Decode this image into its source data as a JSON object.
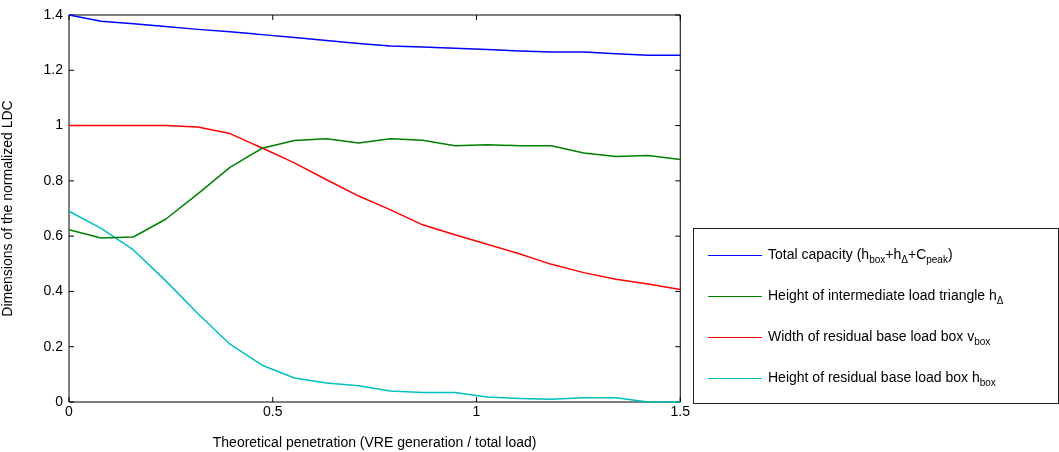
{
  "chart_data": {
    "type": "line",
    "xlabel": "Theoretical penetration (VRE generation / total load)",
    "ylabel": "Dimensions of the normalized LDC",
    "x": [
      0,
      0.079,
      0.158,
      0.237,
      0.316,
      0.395,
      0.474,
      0.553,
      0.632,
      0.711,
      0.789,
      0.868,
      0.947,
      1.026,
      1.105,
      1.184,
      1.263,
      1.342,
      1.421,
      1.5
    ],
    "series": [
      {
        "name": "Total capacity (h$_{box}$+h$_{Δ}$+C$_{peak}$)",
        "color": "#0000ff",
        "values": [
          1.4,
          1.377,
          1.368,
          1.358,
          1.348,
          1.339,
          1.329,
          1.319,
          1.308,
          1.297,
          1.288,
          1.284,
          1.28,
          1.275,
          1.27,
          1.266,
          1.266,
          1.26,
          1.254,
          1.254
        ]
      },
      {
        "name": "Height of intermediate load triangle h$_{Δ}$",
        "color": "#008000",
        "values": [
          0.623,
          0.593,
          0.597,
          0.661,
          0.753,
          0.849,
          0.918,
          0.946,
          0.952,
          0.937,
          0.952,
          0.947,
          0.927,
          0.931,
          0.927,
          0.927,
          0.901,
          0.888,
          0.892,
          0.877
        ]
      },
      {
        "name": "Width of residual base load box v$_{box}$",
        "color": "#ff0000",
        "values": [
          1,
          1,
          1,
          1,
          0.995,
          0.971,
          0.919,
          0.865,
          0.804,
          0.745,
          0.695,
          0.641,
          0.605,
          0.571,
          0.536,
          0.498,
          0.468,
          0.444,
          0.427,
          0.407
        ]
      },
      {
        "name": "Height of residual base load box h$_{box}$",
        "color": "#00bfbf",
        "values": [
          0.69,
          0.628,
          0.55,
          0.439,
          0.32,
          0.209,
          0.133,
          0.087,
          0.069,
          0.059,
          0.04,
          0.034,
          0.034,
          0.018,
          0.013,
          0.01,
          0.015,
          0.015,
          0,
          0
        ]
      }
    ],
    "xlim": [
      0,
      1.5
    ],
    "xticks": [
      0,
      0.5,
      1,
      1.5
    ],
    "ylim": [
      0,
      1.4
    ],
    "yticks": [
      0,
      0.2,
      0.4,
      0.6,
      0.8,
      1,
      1.2,
      1.4
    ],
    "legend": "bottom right",
    "marker": "none",
    "line_style": "solid",
    "grid": false
  }
}
